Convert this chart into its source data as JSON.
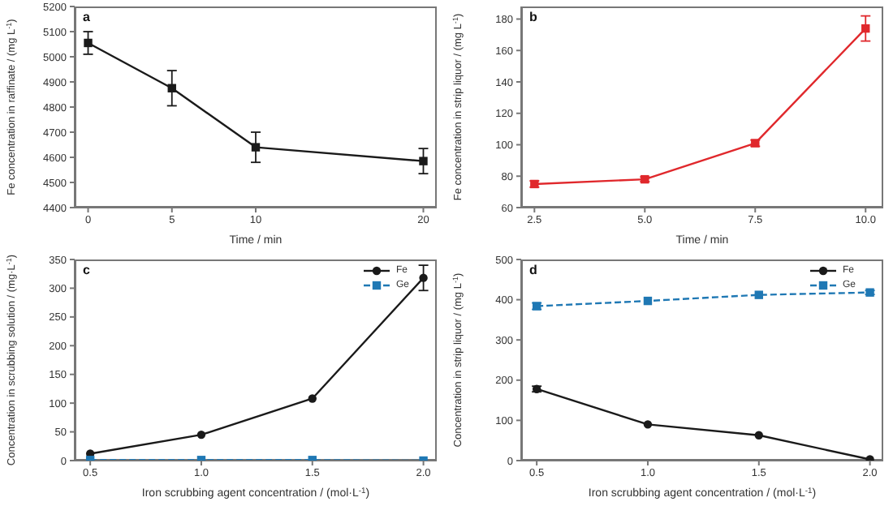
{
  "chart_data": [
    {
      "type": "line",
      "title": "a",
      "xlabel": "Time / min",
      "ylabel": "Fe concentration in raffinate / (mg L$^{-1}$)",
      "xlim": [
        -0.8,
        20.8
      ],
      "xticks": [
        0,
        5,
        10,
        20
      ],
      "ylim": [
        4400,
        5200
      ],
      "yticks": [
        4400,
        4500,
        4600,
        4700,
        4800,
        4900,
        5000,
        5100,
        5200
      ],
      "grid": false,
      "legend": false,
      "marker": "square",
      "line_style": "solid",
      "series": [
        {
          "color": "#1a1a1a",
          "x": [
            0,
            5,
            10,
            20
          ],
          "values": [
            5055,
            4875,
            4640,
            4585
          ],
          "errors": [
            45,
            70,
            60,
            50
          ]
        }
      ]
    },
    {
      "type": "line",
      "title": "b",
      "xlabel": "Time / min",
      "ylabel": "Fe concentration in strip liquor / (mg L$^{-1}$)",
      "xlim": [
        2.2,
        10.4
      ],
      "xticks": [
        {
          "value": 2.5,
          "label": "2.5"
        },
        {
          "value": 5,
          "label": "5.0"
        },
        {
          "value": 7.5,
          "label": "7.5"
        },
        {
          "value": 10,
          "label": "10.0"
        }
      ],
      "ylim": [
        60,
        188
      ],
      "yticks": [
        60,
        80,
        100,
        120,
        140,
        160,
        180
      ],
      "grid": false,
      "legend": false,
      "marker": "square",
      "line_style": "solid",
      "series": [
        {
          "color": "#e0282c",
          "x": [
            2.5,
            5,
            7.5,
            10
          ],
          "values": [
            75,
            78,
            101,
            174
          ],
          "errors": [
            2,
            1.5,
            2,
            8
          ]
        }
      ]
    },
    {
      "type": "line",
      "title": "c",
      "xlabel": "Iron scrubbing agent concentration / (mol·L$^{-1}$)",
      "ylabel": "Concentration in scrubbing solution / (mg·L$^{-1}$)",
      "xlim": [
        0.43,
        2.06
      ],
      "xticks": [
        {
          "value": 0.5,
          "label": "0.5"
        },
        {
          "value": 1,
          "label": "1.0"
        },
        {
          "value": 1.5,
          "label": "1.5"
        },
        {
          "value": 2,
          "label": "2.0"
        }
      ],
      "ylim": [
        0,
        350
      ],
      "yticks": [
        0,
        50,
        100,
        150,
        200,
        250,
        300,
        350
      ],
      "grid": false,
      "legend": "top right",
      "series": [
        {
          "name": "Fe",
          "color": "#1a1a1a",
          "marker": "circle",
          "line_style": "solid",
          "x": [
            0.5,
            1,
            1.5,
            2
          ],
          "values": [
            12,
            45,
            108,
            318
          ],
          "errors": [
            null,
            null,
            null,
            22
          ]
        },
        {
          "name": "Ge",
          "color": "#1f78b4",
          "marker": "square",
          "line_style": "dashed",
          "x": [
            0.5,
            1,
            1.5,
            2
          ],
          "values": [
            1,
            1,
            1,
            0
          ],
          "errors": [
            null,
            null,
            null,
            null
          ]
        }
      ]
    },
    {
      "type": "line",
      "title": "d",
      "xlabel": "Iron scrubbing agent concentration / (mol·L$^{-1}$)",
      "ylabel": "Concentration in strip liquor / (mg L$^{-1}$)",
      "xlim": [
        0.43,
        2.06
      ],
      "xticks": [
        {
          "value": 0.5,
          "label": "0.5"
        },
        {
          "value": 1,
          "label": "1.0"
        },
        {
          "value": 1.5,
          "label": "1.5"
        },
        {
          "value": 2,
          "label": "2.0"
        }
      ],
      "ylim": [
        0,
        500
      ],
      "yticks": [
        0,
        100,
        200,
        300,
        400,
        500
      ],
      "grid": false,
      "legend": "top right",
      "series": [
        {
          "name": "Fe",
          "color": "#1a1a1a",
          "marker": "circle",
          "line_style": "solid",
          "x": [
            0.5,
            1,
            1.5,
            2
          ],
          "values": [
            178,
            90,
            63,
            3
          ],
          "errors": [
            7,
            null,
            null,
            null
          ]
        },
        {
          "name": "Ge",
          "color": "#1f78b4",
          "marker": "square",
          "line_style": "dashed",
          "x": [
            0.5,
            1,
            1.5,
            2
          ],
          "values": [
            384,
            397,
            412,
            418
          ],
          "errors": [
            8,
            null,
            null,
            5
          ]
        }
      ]
    }
  ]
}
